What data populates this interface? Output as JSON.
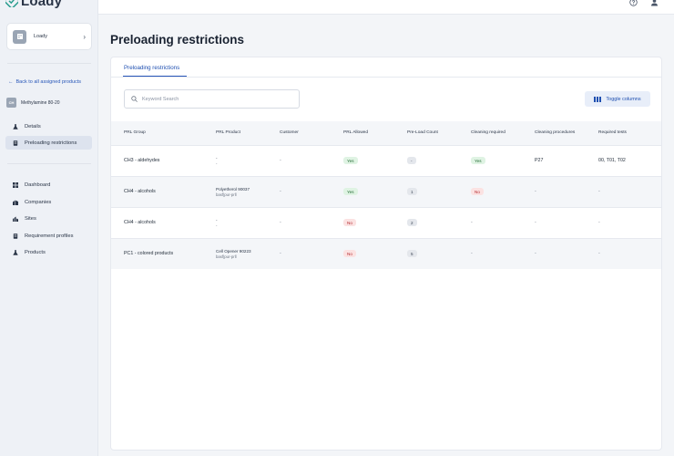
{
  "app": {
    "name": "Loady"
  },
  "sidebar": {
    "org_name": "Loady",
    "back_label": "Back to all assigned products",
    "product": {
      "initials": "CH",
      "name": "Methylamine 80-20"
    },
    "product_nav": [
      {
        "label": "Details",
        "icon": "flask-icon",
        "active": false
      },
      {
        "label": "Preloading restrictions",
        "icon": "document-icon",
        "active": true
      }
    ],
    "main_nav": [
      {
        "label": "Dashboard",
        "icon": "dashboard-icon"
      },
      {
        "label": "Companies",
        "icon": "companies-icon"
      },
      {
        "label": "Sites",
        "icon": "sites-icon"
      },
      {
        "label": "Requirement profiles",
        "icon": "document-icon"
      },
      {
        "label": "Products",
        "icon": "flask-icon"
      }
    ]
  },
  "topbar": {
    "icons": [
      "help-icon",
      "user-icon"
    ]
  },
  "main": {
    "title": "Preloading restrictions",
    "tab_label": "Preloading restrictions",
    "search_placeholder": "Keyword Search",
    "toggle_columns_label": "Toggle columns",
    "columns": [
      "PRL Group",
      "PRL Product",
      "Customer",
      "PRL Allowed",
      "Pre-Load Count",
      "Cleaning required",
      "Cleaning procedures",
      "Required tests"
    ],
    "rows": [
      {
        "group": "CH3 - aldehydes",
        "product_line1": "-",
        "product_line2": "-",
        "customer": "-",
        "allowed": "Yes",
        "count": "-",
        "cleaning_required": "Yes",
        "procedures": "P27",
        "tests": "00, T01, T02"
      },
      {
        "group": "CH4 - alcohols",
        "product_line1": "Polyetherol 90037",
        "product_line2": "basf|pur-prll",
        "customer": "-",
        "allowed": "Yes",
        "count": "1",
        "cleaning_required": "No",
        "procedures": "-",
        "tests": "-"
      },
      {
        "group": "CH4 - alcohols",
        "product_line1": "-",
        "product_line2": "-",
        "customer": "-",
        "allowed": "No",
        "count": "2",
        "cleaning_required": "-",
        "procedures": "-",
        "tests": "-"
      },
      {
        "group": "PC1 - colored products",
        "product_line1": "Cell Opener 90223",
        "product_line2": "basf|pur-prll",
        "customer": "-",
        "allowed": "No",
        "count": "5",
        "cleaning_required": "-",
        "procedures": "-",
        "tests": "-"
      }
    ]
  },
  "colors": {
    "accent": "#2756b8",
    "yes_bg": "#dff3e3",
    "no_bg": "#fbe2e2"
  }
}
